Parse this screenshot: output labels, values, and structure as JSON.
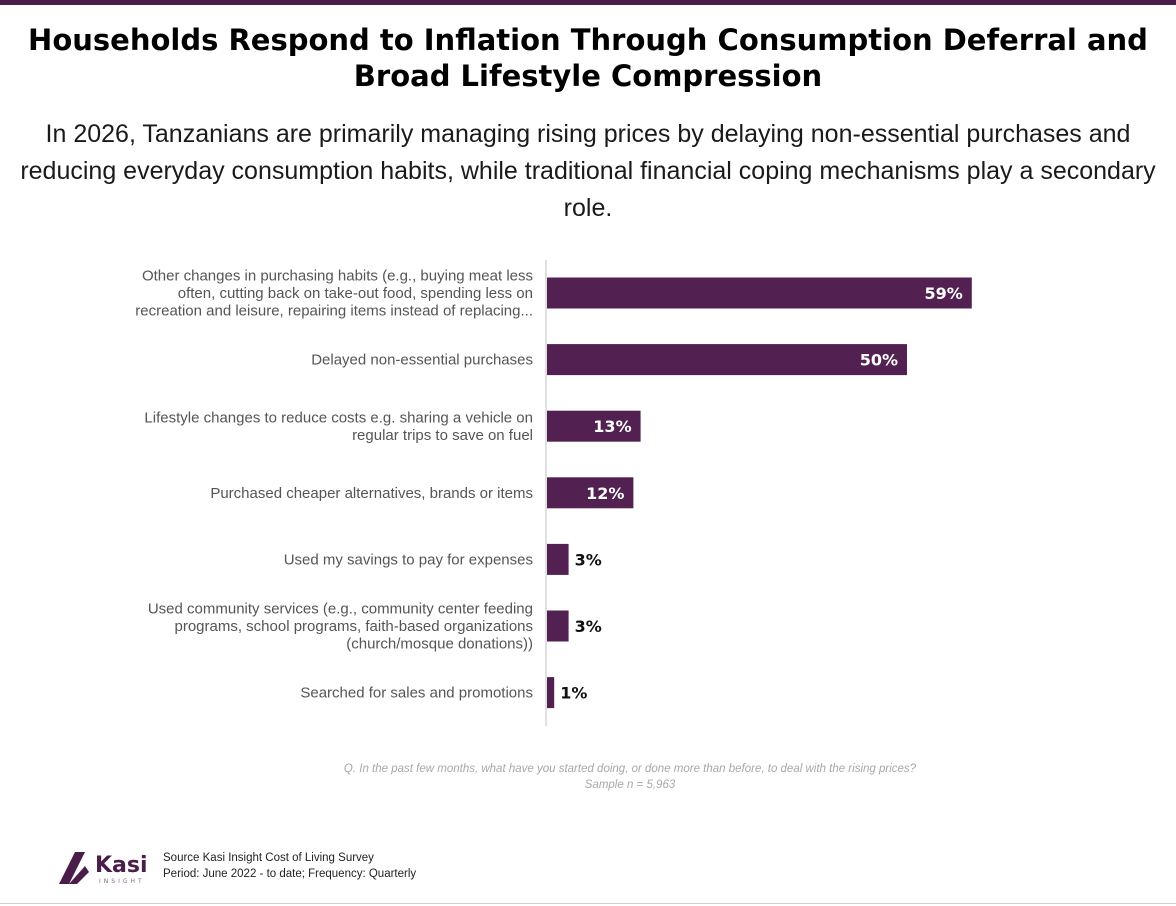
{
  "title": "Households Respond to Inflation Through Consumption Deferral and Broad Lifestyle Compression",
  "subtitle": "In 2026, Tanzanians are primarily managing rising prices by delaying non-essential purchases and reducing everyday consumption habits, while traditional financial coping mechanisms play a secondary role.",
  "colors": {
    "bar": "#522152",
    "accent": "#4a1d4a",
    "label": "#555555"
  },
  "chart_data": {
    "type": "bar",
    "orientation": "horizontal",
    "categories": [
      [
        "Other changes in purchasing habits (e.g., buying meat less",
        "often, cutting back on take-out food, spending less on",
        "recreation and leisure, repairing items instead of replacing..."
      ],
      [
        "Delayed non-essential purchases"
      ],
      [
        "Lifestyle changes to reduce costs e.g. sharing a vehicle on",
        "regular trips to save on fuel"
      ],
      [
        "Purchased cheaper alternatives, brands or items"
      ],
      [
        "Used my savings to pay for expenses"
      ],
      [
        "Used community services (e.g., community center feeding",
        "programs, school programs, faith-based organizations",
        "(church/mosque donations))"
      ],
      [
        "Searched for sales and promotions"
      ]
    ],
    "values": [
      59,
      50,
      13,
      12,
      3,
      3,
      1
    ],
    "value_labels": [
      "59%",
      "50%",
      "13%",
      "12%",
      "3%",
      "3%",
      "1%"
    ],
    "value_unit": "%",
    "xlim": [
      0,
      100
    ],
    "grid": false,
    "legend": "none"
  },
  "question": "Q. In the past few months, what have you started doing, or done more than before, to deal with the rising prices?",
  "sample": "Sample n = 5,963",
  "footer": {
    "logo_text": "Kasi",
    "logo_subtext": "INSIGHT",
    "source": "Source Kasi Insight Cost of Living Survey",
    "period": "Period: June 2022 - to date; Frequency: Quarterly"
  }
}
